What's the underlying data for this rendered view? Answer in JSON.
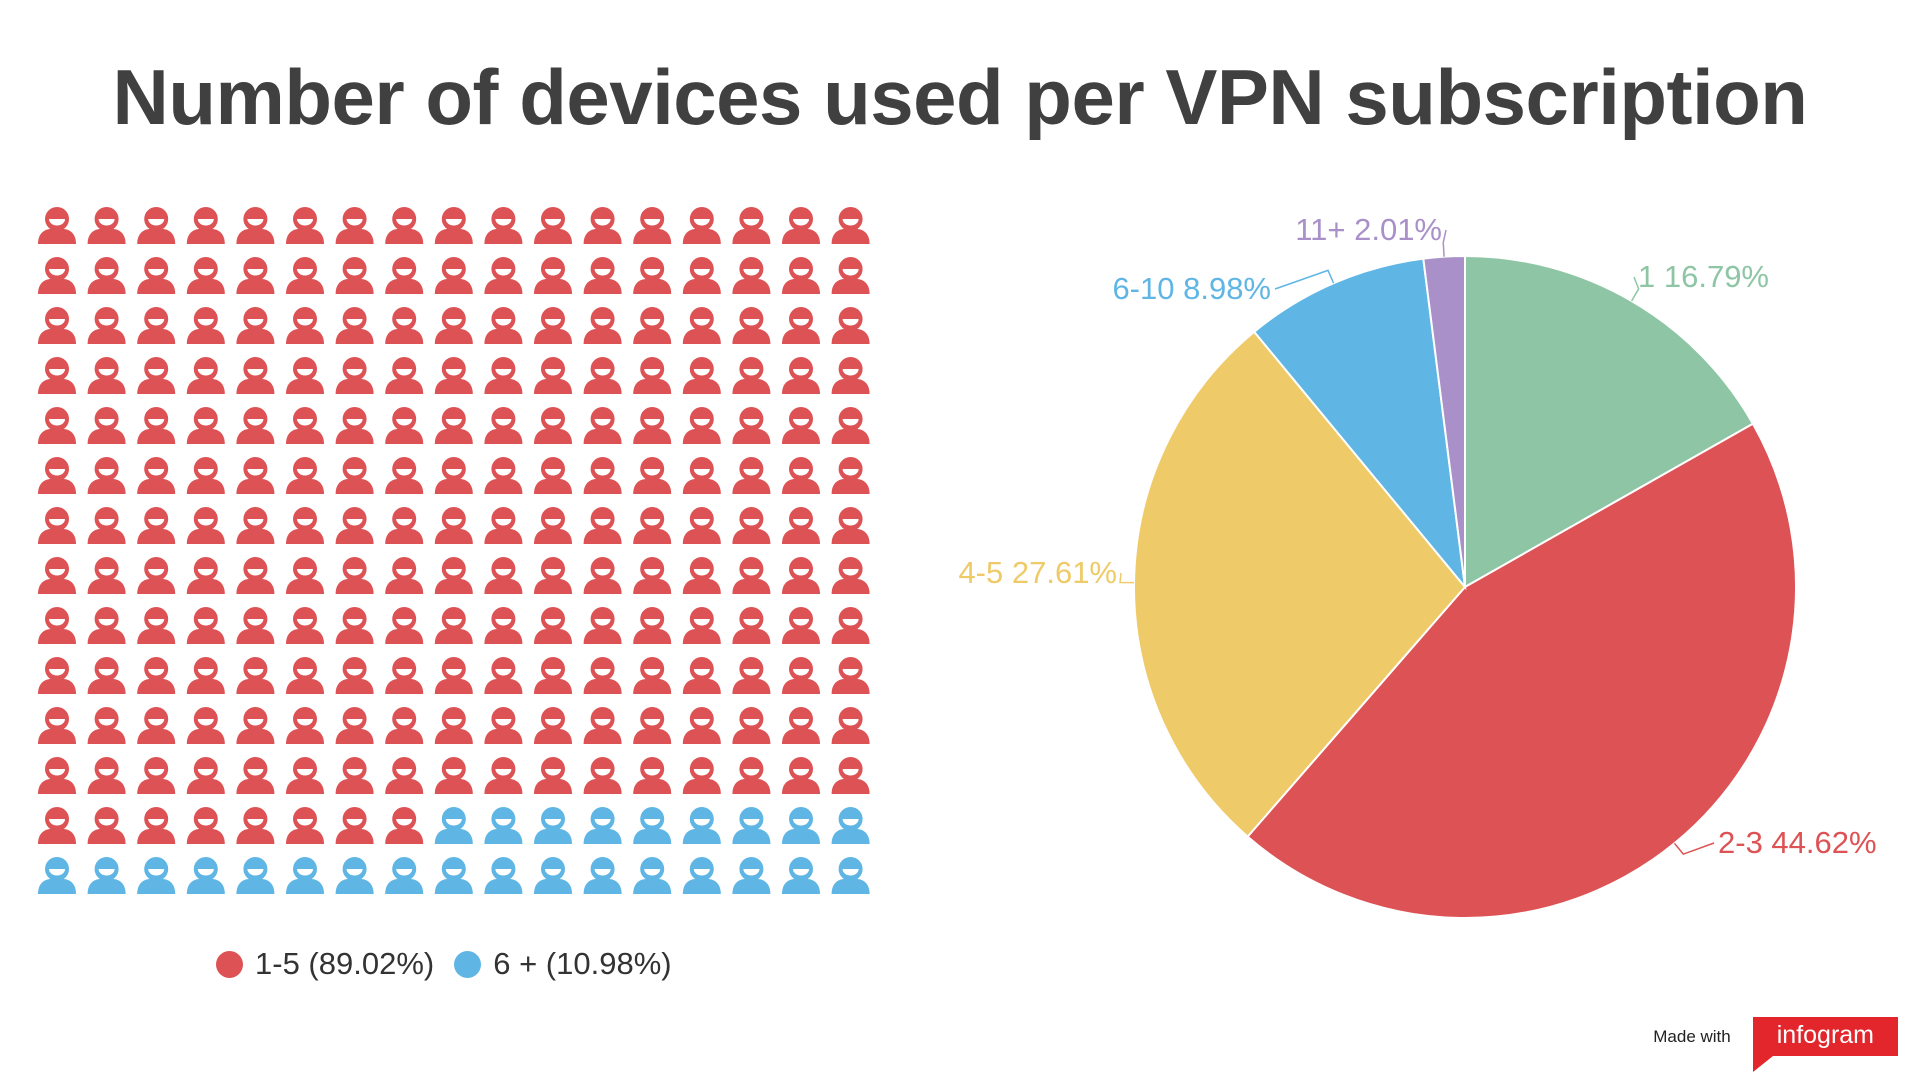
{
  "title": "Number of devices used per VPN subscription",
  "chart_data": [
    {
      "type": "icon-array",
      "rows": 14,
      "columns": 17,
      "icon": "person-icon",
      "series": [
        {
          "name": "1-5",
          "value": 89.02,
          "label": "1-5 (89.02%)",
          "color": "#dd5254",
          "count": 212
        },
        {
          "name": "6 +",
          "value": 10.98,
          "label": "6 + (10.98%)",
          "color": "#5fb6e5",
          "count": 26
        }
      ],
      "legend": "bottom"
    },
    {
      "type": "pie",
      "slices": [
        {
          "name": "1",
          "value": 16.79,
          "label": "1 16.79%",
          "color": "#8ec5a5"
        },
        {
          "name": "2-3",
          "value": 44.62,
          "label": "2-3 44.62%",
          "color": "#dd5254"
        },
        {
          "name": "4-5",
          "value": 27.61,
          "label": "4-5 27.61%",
          "color": "#eeca68"
        },
        {
          "name": "6-10",
          "value": 8.98,
          "label": "6-10 8.98%",
          "color": "#5fb6e5"
        },
        {
          "name": "11+",
          "value": 2.01,
          "label": "11+ 2.01%",
          "color": "#a990c8"
        }
      ]
    }
  ],
  "footer": {
    "made_with": "Made with",
    "brand": "infogram"
  }
}
